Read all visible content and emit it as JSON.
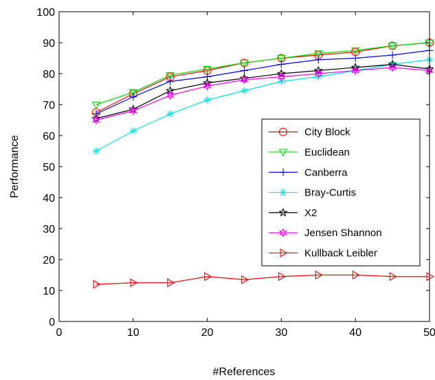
{
  "chart_data": {
    "type": "line",
    "xlabel": "#References",
    "ylabel": "Performance",
    "xlim": [
      0,
      50
    ],
    "ylim": [
      0,
      100
    ],
    "xticks": [
      0,
      10,
      20,
      30,
      40,
      50
    ],
    "yticks": [
      0,
      10,
      20,
      30,
      40,
      50,
      60,
      70,
      80,
      90,
      100
    ],
    "grid": false,
    "legend_position": "center-right",
    "x": [
      5,
      10,
      15,
      20,
      25,
      30,
      35,
      40,
      45,
      50
    ],
    "series": [
      {
        "name": "City Block",
        "color": "#ff0000",
        "marker": "circle",
        "values": [
          67.5,
          73.5,
          79.0,
          81.0,
          83.5,
          85.0,
          86.0,
          87.0,
          89.0,
          90.0
        ]
      },
      {
        "name": "Euclidean",
        "color": "#00dd00",
        "marker": "triangle-down",
        "values": [
          70.0,
          74.0,
          79.5,
          81.5,
          83.5,
          85.0,
          86.5,
          87.5,
          89.0,
          90.0
        ]
      },
      {
        "name": "Canberra",
        "color": "#0000ff",
        "marker": "plus",
        "values": [
          67.0,
          72.5,
          77.5,
          79.0,
          81.0,
          83.0,
          84.5,
          85.0,
          86.0,
          87.5
        ]
      },
      {
        "name": "Bray-Curtis",
        "color": "#00e5e5",
        "marker": "asterisk",
        "values": [
          55.0,
          61.5,
          67.0,
          71.5,
          74.5,
          77.5,
          79.0,
          81.0,
          83.0,
          84.5
        ]
      },
      {
        "name": "X2",
        "color": "#000000",
        "marker": "star",
        "values": [
          65.5,
          68.5,
          74.5,
          77.0,
          78.5,
          80.0,
          81.0,
          82.0,
          83.0,
          81.5
        ]
      },
      {
        "name": "Jensen Shannon",
        "color": "#ff00ff",
        "marker": "hexagram",
        "values": [
          65.0,
          68.0,
          73.0,
          76.0,
          78.0,
          79.0,
          80.0,
          81.0,
          82.0,
          81.0
        ]
      },
      {
        "name": "Kullback Leibler",
        "color": "#ff0000",
        "marker": "triangle-right",
        "values": [
          12.0,
          12.5,
          12.5,
          14.5,
          13.5,
          14.5,
          15.0,
          15.0,
          14.5,
          14.5
        ]
      }
    ]
  }
}
